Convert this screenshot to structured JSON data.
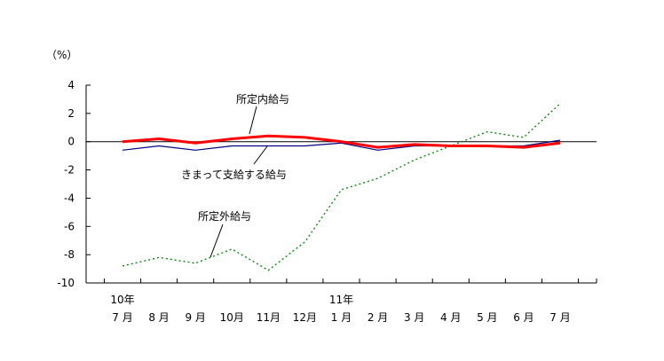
{
  "chart_data": {
    "type": "line",
    "ylabel": "（%）",
    "ylim": [
      -10,
      4
    ],
    "yticks": [
      4,
      2,
      0,
      -2,
      -4,
      -6,
      -8,
      -10
    ],
    "ytick_labels": [
      "4",
      "2",
      "0",
      "-2",
      "-4",
      "-6",
      "-8",
      "-10"
    ],
    "categories": [
      "7 月",
      "8 月",
      "9 月",
      "10月",
      "11月",
      "12月",
      "1 月",
      "2 月",
      "3 月",
      "4 月",
      "5 月",
      "6 月",
      "7 月"
    ],
    "year_labels": [
      {
        "index": 0,
        "text": "10年"
      },
      {
        "index": 6,
        "text": "11年"
      }
    ],
    "grid": false,
    "series": [
      {
        "name": "所定内給与",
        "style": "solid-thick",
        "color": "#ff0000",
        "values": [
          0.0,
          0.2,
          -0.1,
          0.2,
          0.4,
          0.3,
          0.0,
          -0.4,
          -0.2,
          -0.3,
          -0.3,
          -0.4,
          -0.1
        ]
      },
      {
        "name": "きまって支給する給与",
        "style": "solid-thin",
        "color": "#000080",
        "values": [
          -0.6,
          -0.3,
          -0.6,
          -0.3,
          -0.3,
          -0.3,
          -0.1,
          -0.6,
          -0.3,
          -0.3,
          -0.3,
          -0.3,
          0.1
        ]
      },
      {
        "name": "所定外給与",
        "style": "dotted",
        "color": "#008000",
        "values": [
          -8.8,
          -8.2,
          -8.6,
          -7.6,
          -9.1,
          -7.1,
          -3.4,
          -2.6,
          -1.3,
          -0.3,
          0.7,
          0.3,
          2.7
        ]
      }
    ],
    "annotations": [
      {
        "series": "所定内給与",
        "text": "所定内給与"
      },
      {
        "series": "きまって支給する給与",
        "text": "きまって支給する給与"
      },
      {
        "series": "所定外給与",
        "text": "所定外給与"
      }
    ]
  }
}
